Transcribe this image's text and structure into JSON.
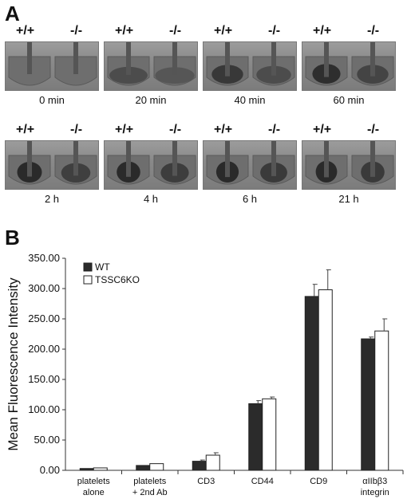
{
  "panel_a": {
    "letter": "A",
    "genotype_left": "+/+",
    "genotype_right": "-/-",
    "timepoints": [
      "0 min",
      "20 min",
      "40 min",
      "60 min",
      "2 h",
      "4 h",
      "6 h",
      "21 h"
    ],
    "clot_fraction_left": [
      0.0,
      0.15,
      0.45,
      0.6,
      0.75,
      0.8,
      0.85,
      0.9
    ],
    "clot_fraction_right": [
      0.0,
      0.1,
      0.3,
      0.45,
      0.55,
      0.6,
      0.65,
      0.8
    ]
  },
  "panel_b": {
    "letter": "B"
  },
  "chart_data": {
    "type": "bar",
    "ylabel": "Mean Fluorescence Intensity",
    "xlabel": "",
    "ylim": [
      0,
      350
    ],
    "yticks": [
      "0.00",
      "50.00",
      "100.00",
      "150.00",
      "200.00",
      "250.00",
      "300.00",
      "350.00"
    ],
    "categories": [
      [
        "platelets",
        "alone"
      ],
      [
        "platelets",
        "+ 2nd Ab"
      ],
      [
        "CD3"
      ],
      [
        "CD44"
      ],
      [
        "CD9"
      ],
      [
        "αIIbβ3",
        "integrin"
      ]
    ],
    "series": [
      {
        "name": "WT",
        "color": "#2b2b2b",
        "values": [
          3,
          8,
          15,
          110,
          287,
          217
        ],
        "errors": [
          0,
          0,
          2,
          5,
          20,
          3
        ]
      },
      {
        "name": "TSSC6KO",
        "color": "#ffffff",
        "values": [
          4,
          11,
          25,
          118,
          298,
          230
        ],
        "errors": [
          0,
          0,
          4,
          3,
          33,
          20
        ]
      }
    ],
    "legend_position": "top-left"
  }
}
